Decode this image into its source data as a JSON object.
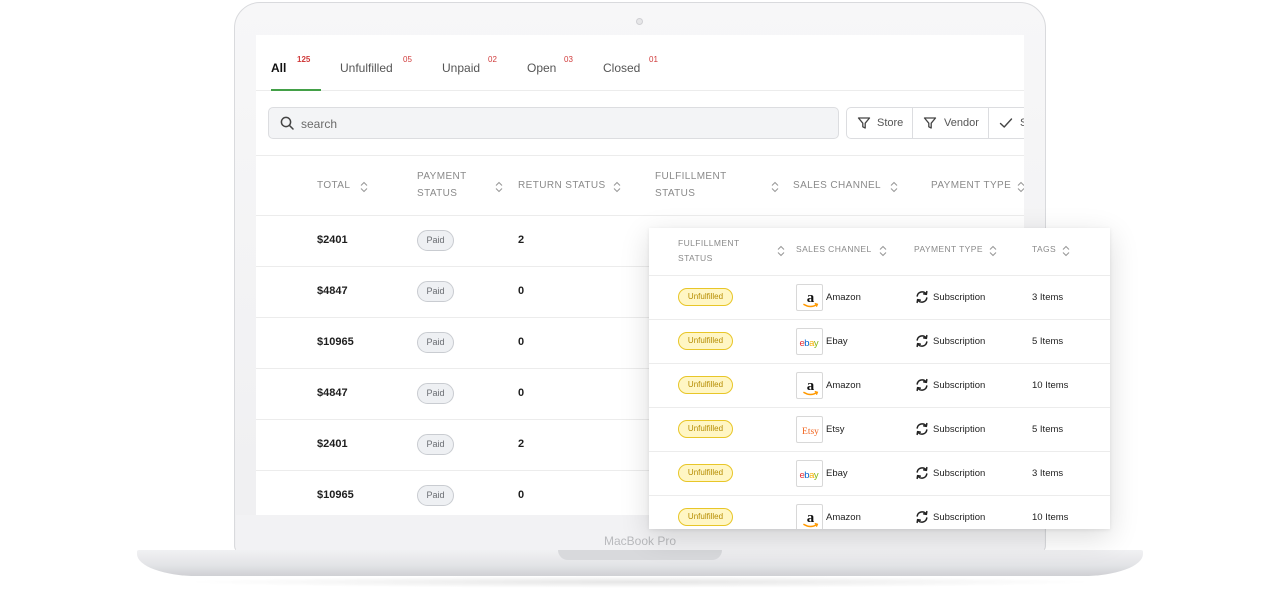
{
  "device": {
    "model_label": "MacBook Pro"
  },
  "tabs": [
    {
      "label": "All",
      "count": "125",
      "active": true
    },
    {
      "label": "Unfulfilled",
      "count": "05",
      "active": false
    },
    {
      "label": "Unpaid",
      "count": "02",
      "active": false
    },
    {
      "label": "Open",
      "count": "03",
      "active": false
    },
    {
      "label": "Closed",
      "count": "01",
      "active": false
    }
  ],
  "search": {
    "placeholder": "search"
  },
  "filters": [
    {
      "label": "Store",
      "icon": "filter-icon"
    },
    {
      "label": "Vendor",
      "icon": "filter-icon"
    },
    {
      "label": "S",
      "icon": "check-icon"
    }
  ],
  "main_table": {
    "headers": {
      "total": "TOTAL",
      "payment_status_1": "PAYMENT",
      "payment_status_2": "STATUS",
      "return_status": "RETURN STATUS",
      "fulfillment_status_1": "FULFILLMENT",
      "fulfillment_status_2": "STATUS",
      "sales_channel": "SALES CHANNEL",
      "payment_type": "PAYMENT TYPE"
    },
    "rows": [
      {
        "total": "$2401",
        "payment_status": "Paid",
        "return_status": "2"
      },
      {
        "total": "$4847",
        "payment_status": "Paid",
        "return_status": "0"
      },
      {
        "total": "$10965",
        "payment_status": "Paid",
        "return_status": "0"
      },
      {
        "total": "$4847",
        "payment_status": "Paid",
        "return_status": "0"
      },
      {
        "total": "$2401",
        "payment_status": "Paid",
        "return_status": "2"
      },
      {
        "total": "$10965",
        "payment_status": "Paid",
        "return_status": "0"
      }
    ]
  },
  "detail_card": {
    "headers": {
      "fulfillment_status_1": "FULFILLMENT",
      "fulfillment_status_2": "STATUS",
      "sales_channel": "SALES CHANNEL",
      "payment_type": "PAYMENT TYPE",
      "tags": "TAGS"
    },
    "rows": [
      {
        "fulfillment": "Unfulfilled",
        "channel": "Amazon",
        "channel_logo": "amazon-logo",
        "payment_type": "Subscription",
        "tags": "3 Items"
      },
      {
        "fulfillment": "Unfulfilled",
        "channel": "Ebay",
        "channel_logo": "ebay-logo",
        "payment_type": "Subscription",
        "tags": "5 Items"
      },
      {
        "fulfillment": "Unfulfilled",
        "channel": "Amazon",
        "channel_logo": "amazon-logo",
        "payment_type": "Subscription",
        "tags": "10 Items"
      },
      {
        "fulfillment": "Unfulfilled",
        "channel": "Etsy",
        "channel_logo": "etsy-logo",
        "payment_type": "Subscription",
        "tags": "5 Items"
      },
      {
        "fulfillment": "Unfulfilled",
        "channel": "Ebay",
        "channel_logo": "ebay-logo",
        "payment_type": "Subscription",
        "tags": "3 Items"
      },
      {
        "fulfillment": "Unfulfilled",
        "channel": "Amazon",
        "channel_logo": "amazon-logo",
        "payment_type": "Subscription",
        "tags": "10 Items"
      }
    ]
  },
  "colors": {
    "accent_green": "#43a047",
    "count_red": "#d03b3b",
    "unfulfilled_bg": "#fff6c4",
    "unfulfilled_border": "#e8c628",
    "ebay_red": "#e53238",
    "ebay_blue": "#0064d2",
    "ebay_yellow": "#f5af02",
    "ebay_green": "#86b817",
    "amazon_orange": "#ff9900",
    "etsy_orange": "#f1641e"
  }
}
